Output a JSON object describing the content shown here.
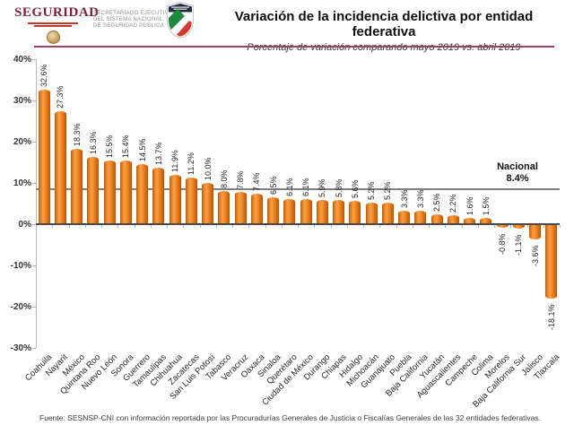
{
  "header": {
    "logo_text": "SEGURIDAD",
    "org_lines": [
      "SECRETARIADO EJECUTIVO",
      "DEL SISTEMA NACIONAL",
      "DE SEGURIDAD PÚBLICA"
    ],
    "title": "Variación de la incidencia delictiva por entidad federativa",
    "subtitle": "Porcentaje de variación comparando mayo 2019 vs. abril 2019"
  },
  "chart_data": {
    "type": "bar",
    "title": "Variación de la incidencia delictiva por entidad federativa",
    "subtitle": "Porcentaje de variación comparando mayo 2019 vs. abril 2019",
    "categories": [
      "Coahuila",
      "Nayarit",
      "México",
      "Quintana Roo",
      "Nuevo León",
      "Sonora",
      "Guerrero",
      "Tamaulipas",
      "Chihuahua",
      "Zacatecas",
      "San Luis Potosí",
      "Tabasco",
      "Veracruz",
      "Oaxaca",
      "Sinaloa",
      "Querétaro",
      "Ciudad de México",
      "Durango",
      "Chiapas",
      "Hidalgo",
      "Michoacán",
      "Guanajuato",
      "Puebla",
      "Baja California",
      "Yucatán",
      "Aguascalientes",
      "Campeche",
      "Colima",
      "Morelos",
      "Baja California Sur",
      "Jalisco",
      "Tlaxcala"
    ],
    "values": [
      32.6,
      27.3,
      18.3,
      16.3,
      15.5,
      15.4,
      14.5,
      13.7,
      11.9,
      11.2,
      10.0,
      8.0,
      7.8,
      7.4,
      6.5,
      6.1,
      6.1,
      5.9,
      5.8,
      5.6,
      5.2,
      5.2,
      3.3,
      3.3,
      2.5,
      2.2,
      1.6,
      1.5,
      -0.8,
      -1.1,
      -3.6,
      -18.1
    ],
    "xlabel": "",
    "ylabel": "",
    "ylim": [
      -30,
      40
    ],
    "ytick_step": 10,
    "ytick_suffix": "%",
    "grid": false,
    "legend": "none",
    "reference_line": {
      "label": "Nacional",
      "value": 8.4,
      "value_label": "8.4%"
    },
    "colors": {
      "bar": "#E8821E",
      "reference_line": "#808080",
      "accent_rule": "#9C4260",
      "axis": "#B8B8B8",
      "baseline": "#4A4A4A",
      "category_tick": "#9FC0DA"
    }
  },
  "footer": {
    "source": "Fuente: SESNSP-CNI con información reportada por las Procuradurías Generales de Justicia o Fiscalías Generales de las 32 entidades federativas."
  }
}
